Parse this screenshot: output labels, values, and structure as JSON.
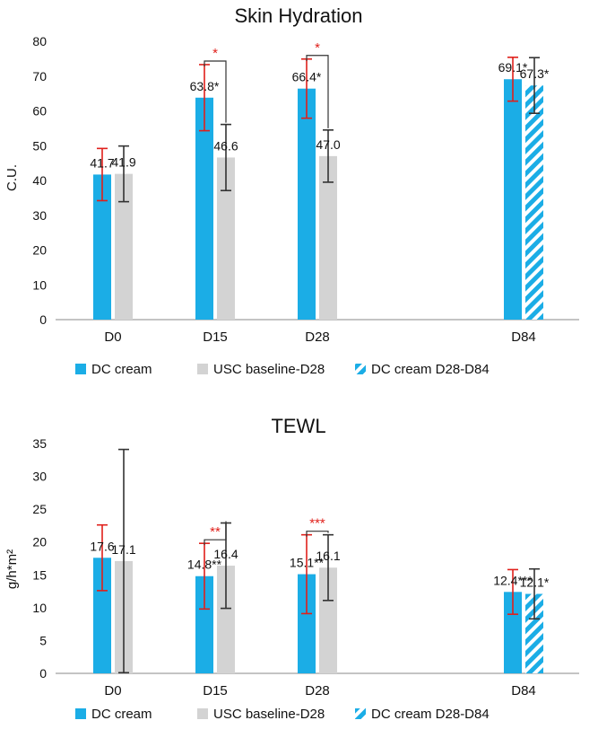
{
  "palette": {
    "dc_cream": "#1BADE6",
    "usc_baseline": "#D3D3D3",
    "dc_cream_stripe": "#1BADE6",
    "error_red": "#E0201B",
    "error_dark": "#333333",
    "axis": "#888888",
    "text": "#111111"
  },
  "chart_data": [
    {
      "type": "bar",
      "title": "Skin Hydration",
      "ylabel": "C.U.",
      "ylim": [
        0,
        80
      ],
      "yticks": [
        0,
        10,
        20,
        30,
        40,
        50,
        60,
        70,
        80
      ],
      "grid": false,
      "legend_position": "bottom",
      "categories": [
        "D0",
        "D15",
        "D28",
        "D84"
      ],
      "series": [
        {
          "name": "DC cream",
          "values": [
            41.7,
            63.8,
            66.4,
            69.1
          ],
          "errors": [
            7.5,
            9.5,
            8.5,
            6.3
          ],
          "labels": [
            "41.7",
            "63.8*",
            "66.4*",
            "69.1*"
          ]
        },
        {
          "name": "USC baseline-D28",
          "values": [
            41.9,
            46.6,
            47.0,
            null
          ],
          "errors": [
            8.0,
            9.5,
            7.5,
            null
          ],
          "labels": [
            "41.9",
            "46.6",
            "47.0",
            ""
          ]
        },
        {
          "name": "DC cream D28-D84",
          "values": [
            null,
            null,
            null,
            67.3
          ],
          "errors": [
            null,
            null,
            null,
            8.0
          ],
          "labels": [
            "",
            "",
            "",
            "67.3*"
          ]
        }
      ],
      "significance": [
        {
          "category": "D15",
          "label": "*"
        },
        {
          "category": "D28",
          "label": "*"
        }
      ]
    },
    {
      "type": "bar",
      "title": "TEWL",
      "ylabel": "g/h*m²",
      "ylim": [
        0,
        35
      ],
      "yticks": [
        0,
        5,
        10,
        15,
        20,
        25,
        30,
        35
      ],
      "grid": false,
      "legend_position": "bottom",
      "categories": [
        "D0",
        "D15",
        "D28",
        "D84"
      ],
      "series": [
        {
          "name": "DC cream",
          "values": [
            17.6,
            14.8,
            15.1,
            12.4
          ],
          "errors": [
            5.0,
            5.0,
            6.0,
            3.4
          ],
          "labels": [
            "17.6",
            "14.8**",
            "15.1**",
            "12.4***"
          ]
        },
        {
          "name": "USC baseline-D28",
          "values": [
            17.1,
            16.4,
            16.1,
            null
          ],
          "errors": [
            17.0,
            6.5,
            5.0,
            null
          ],
          "labels": [
            "17.1",
            "16.4",
            "16.1",
            ""
          ]
        },
        {
          "name": "DC cream D28-D84",
          "values": [
            null,
            null,
            null,
            12.1
          ],
          "errors": [
            null,
            null,
            null,
            3.8
          ],
          "labels": [
            "",
            "",
            "",
            "12.1*"
          ]
        }
      ],
      "significance": [
        {
          "category": "D15",
          "label": "**"
        },
        {
          "category": "D28",
          "label": "***"
        }
      ]
    }
  ]
}
